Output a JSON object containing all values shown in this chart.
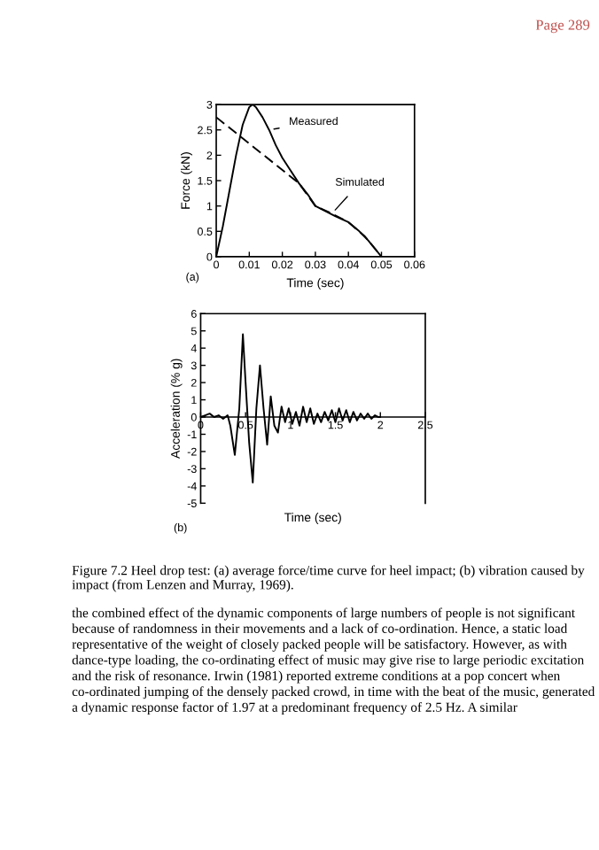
{
  "chart_data": [
    {
      "type": "line",
      "xlabel": "Time (sec)",
      "ylabel": "Force (kN)",
      "xlim": [
        0,
        0.06
      ],
      "ylim": [
        0,
        3
      ],
      "xticks": [
        0,
        0.01,
        0.02,
        0.03,
        0.04,
        0.05,
        0.06
      ],
      "yticks": [
        0,
        0.5,
        1,
        1.5,
        2,
        2.5,
        3
      ],
      "grid": false,
      "series": [
        {
          "name": "Measured",
          "color": "#000000",
          "line_style": "solid",
          "x": [
            0,
            0.002,
            0.004,
            0.006,
            0.008,
            0.01,
            0.011,
            0.012,
            0.014,
            0.016,
            0.018,
            0.02,
            0.022,
            0.025,
            0.028,
            0.03,
            0.033,
            0.036,
            0.04,
            0.043,
            0.046,
            0.048,
            0.05
          ],
          "values": [
            0,
            0.6,
            1.3,
            2.0,
            2.6,
            2.95,
            3.0,
            2.95,
            2.75,
            2.5,
            2.2,
            1.95,
            1.75,
            1.45,
            1.2,
            1.0,
            0.9,
            0.8,
            0.68,
            0.52,
            0.32,
            0.16,
            0
          ]
        },
        {
          "name": "Simulated",
          "color": "#000000",
          "line_style": "dashed",
          "x": [
            0,
            0.025,
            0.03,
            0.035,
            0.04,
            0.045,
            0.05
          ],
          "values": [
            2.75,
            1.45,
            1.0,
            0.85,
            0.68,
            0.4,
            0
          ]
        }
      ],
      "annotations": [
        "Page 289",
        "(a)"
      ]
    },
    {
      "type": "line",
      "xlabel": "Time (sec)",
      "ylabel": "Acceleration (% g)",
      "xlim": [
        0,
        2.5
      ],
      "ylim": [
        -5,
        6
      ],
      "xticks": [
        0,
        0.5,
        1,
        1.5,
        2,
        2.5
      ],
      "yticks": [
        -5,
        -4,
        -3,
        -2,
        -1,
        0,
        1,
        2,
        3,
        4,
        5,
        6
      ],
      "grid": false,
      "legend": false,
      "series": [
        {
          "color": "#000000",
          "line_style": "solid",
          "x": [
            0,
            0.05,
            0.1,
            0.15,
            0.2,
            0.25,
            0.3,
            0.33,
            0.38,
            0.43,
            0.47,
            0.5,
            0.54,
            0.58,
            0.62,
            0.66,
            0.7,
            0.74,
            0.78,
            0.82,
            0.86,
            0.9,
            0.94,
            0.98,
            1.02,
            1.06,
            1.1,
            1.14,
            1.18,
            1.22,
            1.26,
            1.3,
            1.34,
            1.38,
            1.42,
            1.46,
            1.5,
            1.54,
            1.58,
            1.62,
            1.66,
            1.7,
            1.74,
            1.78,
            1.82,
            1.86,
            1.9,
            1.94,
            1.98,
            2.0
          ],
          "values": [
            0,
            0.1,
            0.2,
            0,
            0.1,
            -0.1,
            0.1,
            -0.5,
            -2.2,
            0.5,
            4.8,
            2,
            -1.5,
            -3.8,
            0.5,
            3,
            0.5,
            -1.6,
            1.2,
            -0.5,
            -0.9,
            0.6,
            -0.3,
            0.5,
            -0.4,
            0.3,
            -0.5,
            0.6,
            -0.3,
            0.5,
            -0.4,
            0.2,
            -0.3,
            0.3,
            -0.2,
            0.4,
            -0.3,
            0.5,
            -0.2,
            0.4,
            -0.3,
            0.3,
            -0.2,
            0.2,
            -0.1,
            0.2,
            -0.1,
            0.1,
            0,
            0
          ]
        }
      ],
      "annotations": [
        "(b)",
        "Figure 7.2 Heel drop test: (a) average force/time curve for heel impact; (b) vibration caused by impact (from Lenzen and Murray, 1969).",
        "the combined effect of the dynamic components of large numbers of people is not significant because of randomness in their movements and a lack of co-ordination. Hence, a static load representative of the weight of closely packed people will be satisfactory. However, as with dance-type loading, the co-ordinating effect of music may give rise to large periodic excitation and the risk of resonance. Irwin (1981) reported extreme conditions at a pop concert when co-ordinated jumping of the densely packed crowd, in time with the beat of the music, generated a dynamic response factor of 1.97 at a predominant frequency of 2.5 Hz. A similar"
      ]
    }
  ]
}
